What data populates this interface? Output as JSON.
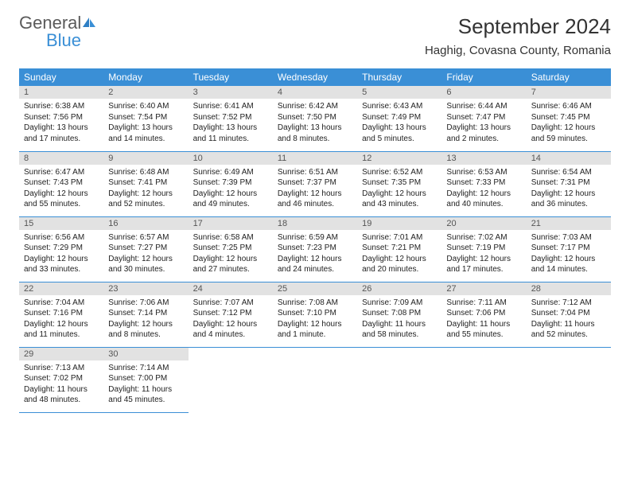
{
  "logo": {
    "word1": "General",
    "word2": "Blue"
  },
  "title": "September 2024",
  "location": "Haghig, Covasna County, Romania",
  "colors": {
    "header_bg": "#3a8fd6",
    "header_text": "#ffffff",
    "daynum_bg": "#e2e2e2",
    "daynum_text": "#555555",
    "rule": "#3a8fd6",
    "body_text": "#222222",
    "logo_gray": "#5a5a5a",
    "logo_blue": "#3a8fd6"
  },
  "weekdays": [
    "Sunday",
    "Monday",
    "Tuesday",
    "Wednesday",
    "Thursday",
    "Friday",
    "Saturday"
  ],
  "days": [
    {
      "n": 1,
      "sr": "6:38 AM",
      "ss": "7:56 PM",
      "dl": "13 hours and 17 minutes."
    },
    {
      "n": 2,
      "sr": "6:40 AM",
      "ss": "7:54 PM",
      "dl": "13 hours and 14 minutes."
    },
    {
      "n": 3,
      "sr": "6:41 AM",
      "ss": "7:52 PM",
      "dl": "13 hours and 11 minutes."
    },
    {
      "n": 4,
      "sr": "6:42 AM",
      "ss": "7:50 PM",
      "dl": "13 hours and 8 minutes."
    },
    {
      "n": 5,
      "sr": "6:43 AM",
      "ss": "7:49 PM",
      "dl": "13 hours and 5 minutes."
    },
    {
      "n": 6,
      "sr": "6:44 AM",
      "ss": "7:47 PM",
      "dl": "13 hours and 2 minutes."
    },
    {
      "n": 7,
      "sr": "6:46 AM",
      "ss": "7:45 PM",
      "dl": "12 hours and 59 minutes."
    },
    {
      "n": 8,
      "sr": "6:47 AM",
      "ss": "7:43 PM",
      "dl": "12 hours and 55 minutes."
    },
    {
      "n": 9,
      "sr": "6:48 AM",
      "ss": "7:41 PM",
      "dl": "12 hours and 52 minutes."
    },
    {
      "n": 10,
      "sr": "6:49 AM",
      "ss": "7:39 PM",
      "dl": "12 hours and 49 minutes."
    },
    {
      "n": 11,
      "sr": "6:51 AM",
      "ss": "7:37 PM",
      "dl": "12 hours and 46 minutes."
    },
    {
      "n": 12,
      "sr": "6:52 AM",
      "ss": "7:35 PM",
      "dl": "12 hours and 43 minutes."
    },
    {
      "n": 13,
      "sr": "6:53 AM",
      "ss": "7:33 PM",
      "dl": "12 hours and 40 minutes."
    },
    {
      "n": 14,
      "sr": "6:54 AM",
      "ss": "7:31 PM",
      "dl": "12 hours and 36 minutes."
    },
    {
      "n": 15,
      "sr": "6:56 AM",
      "ss": "7:29 PM",
      "dl": "12 hours and 33 minutes."
    },
    {
      "n": 16,
      "sr": "6:57 AM",
      "ss": "7:27 PM",
      "dl": "12 hours and 30 minutes."
    },
    {
      "n": 17,
      "sr": "6:58 AM",
      "ss": "7:25 PM",
      "dl": "12 hours and 27 minutes."
    },
    {
      "n": 18,
      "sr": "6:59 AM",
      "ss": "7:23 PM",
      "dl": "12 hours and 24 minutes."
    },
    {
      "n": 19,
      "sr": "7:01 AM",
      "ss": "7:21 PM",
      "dl": "12 hours and 20 minutes."
    },
    {
      "n": 20,
      "sr": "7:02 AM",
      "ss": "7:19 PM",
      "dl": "12 hours and 17 minutes."
    },
    {
      "n": 21,
      "sr": "7:03 AM",
      "ss": "7:17 PM",
      "dl": "12 hours and 14 minutes."
    },
    {
      "n": 22,
      "sr": "7:04 AM",
      "ss": "7:16 PM",
      "dl": "12 hours and 11 minutes."
    },
    {
      "n": 23,
      "sr": "7:06 AM",
      "ss": "7:14 PM",
      "dl": "12 hours and 8 minutes."
    },
    {
      "n": 24,
      "sr": "7:07 AM",
      "ss": "7:12 PM",
      "dl": "12 hours and 4 minutes."
    },
    {
      "n": 25,
      "sr": "7:08 AM",
      "ss": "7:10 PM",
      "dl": "12 hours and 1 minute."
    },
    {
      "n": 26,
      "sr": "7:09 AM",
      "ss": "7:08 PM",
      "dl": "11 hours and 58 minutes."
    },
    {
      "n": 27,
      "sr": "7:11 AM",
      "ss": "7:06 PM",
      "dl": "11 hours and 55 minutes."
    },
    {
      "n": 28,
      "sr": "7:12 AM",
      "ss": "7:04 PM",
      "dl": "11 hours and 52 minutes."
    },
    {
      "n": 29,
      "sr": "7:13 AM",
      "ss": "7:02 PM",
      "dl": "11 hours and 48 minutes."
    },
    {
      "n": 30,
      "sr": "7:14 AM",
      "ss": "7:00 PM",
      "dl": "11 hours and 45 minutes."
    }
  ],
  "labels": {
    "sunrise": "Sunrise:",
    "sunset": "Sunset:",
    "daylight": "Daylight:"
  },
  "layout": {
    "first_weekday_index": 0,
    "columns": 7
  }
}
